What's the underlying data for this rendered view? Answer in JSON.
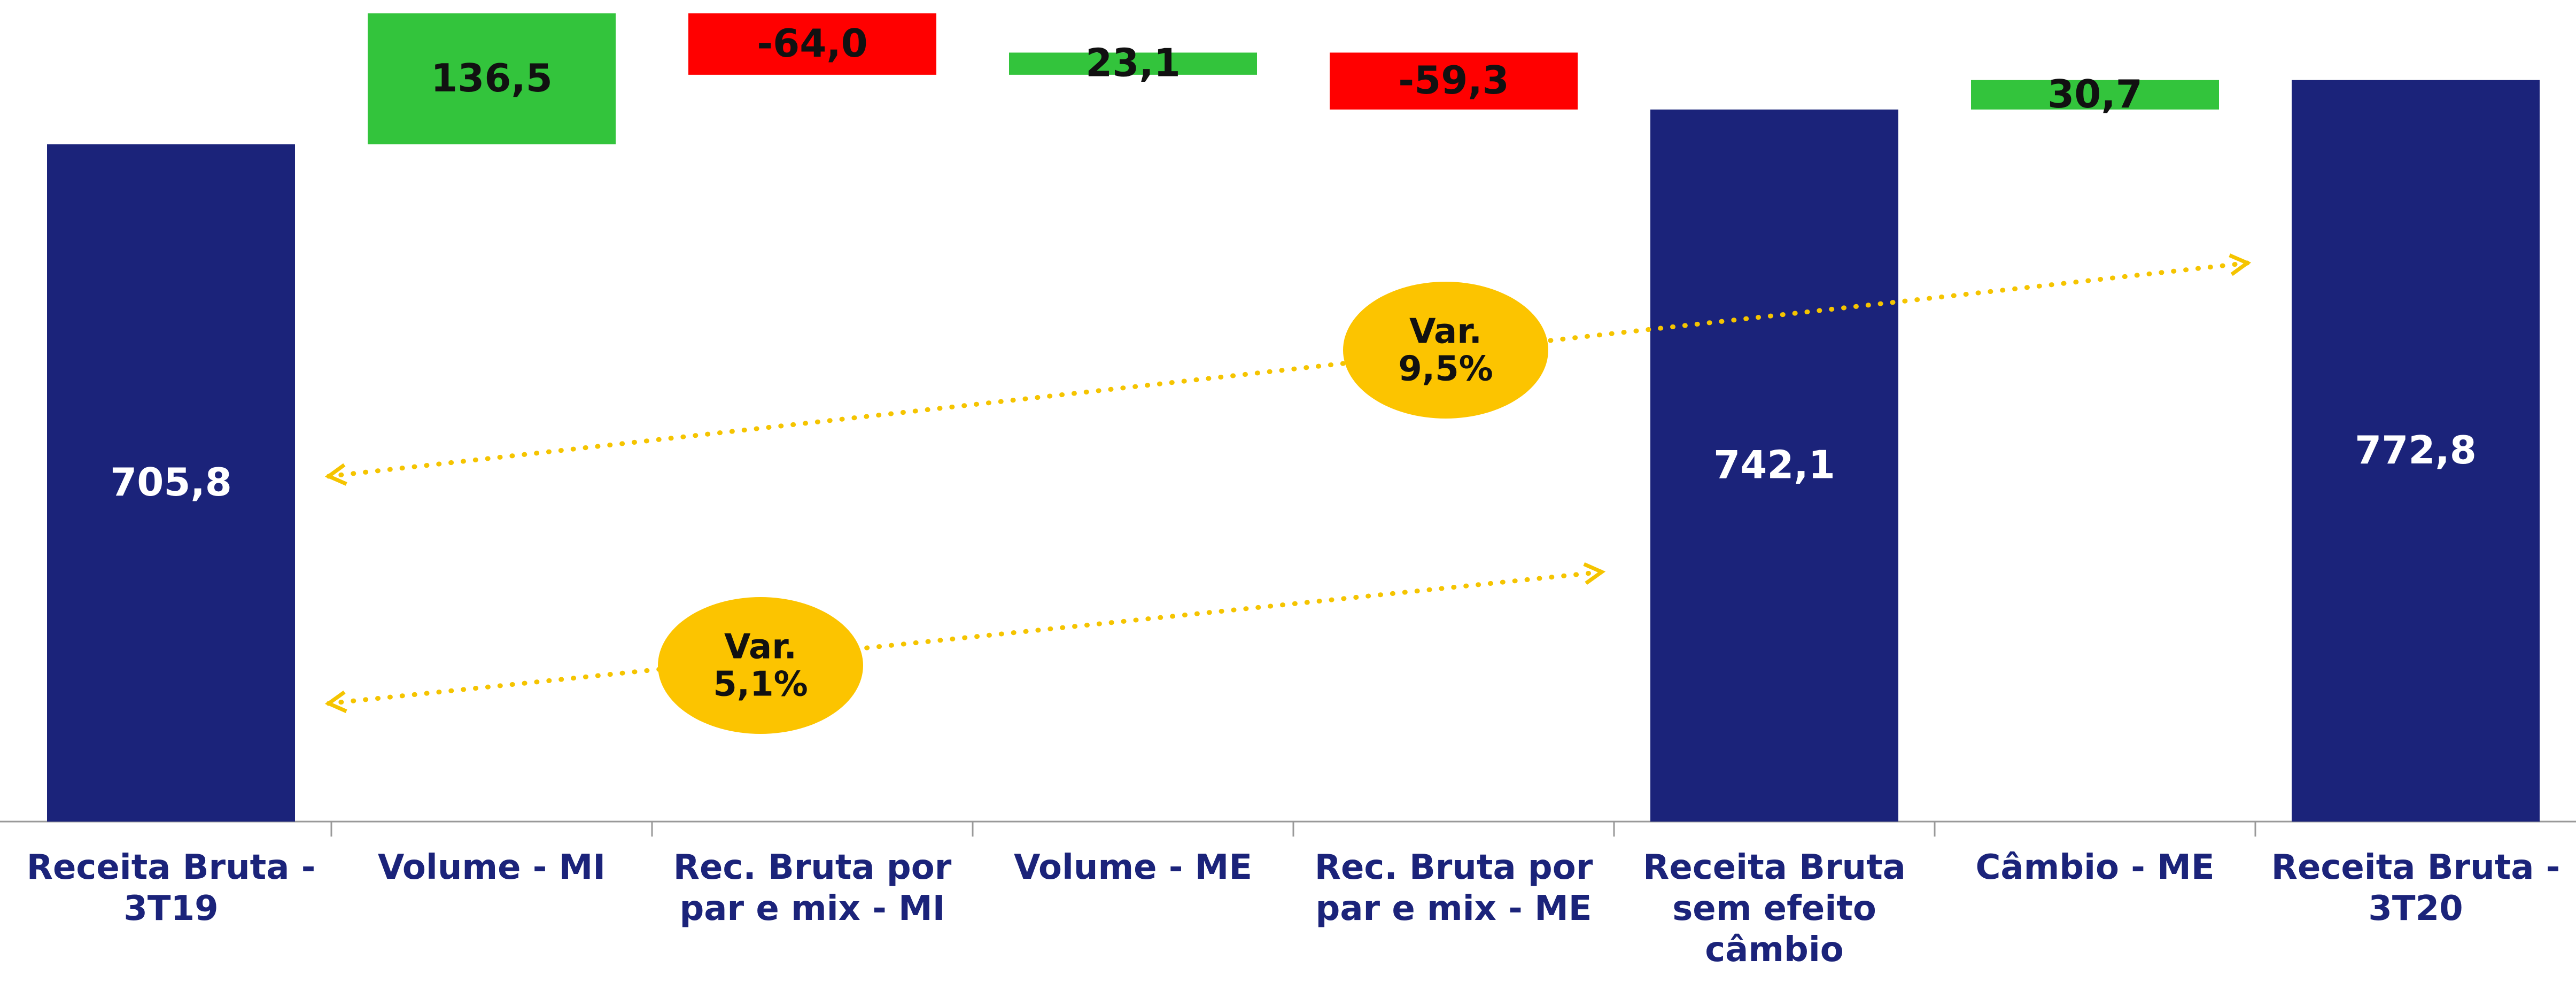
{
  "chart_data": {
    "type": "waterfall",
    "categories": [
      "Receita Bruta -\n3T19",
      "Volume - MI",
      "Rec. Bruta por\npar e mix - MI",
      "Volume - ME",
      "Rec. Bruta por\npar e mix - ME",
      "Receita Bruta\nsem efeito\ncâmbio",
      "Câmbio - ME",
      "Receita Bruta -\n3T20"
    ],
    "values": [
      705.8,
      136.5,
      -64.0,
      23.1,
      -59.3,
      742.1,
      30.7,
      772.8
    ],
    "value_labels": [
      "705,8",
      "136,5",
      "-64,0",
      "23,1",
      "-59,3",
      "742,1",
      "30,7",
      "772,8"
    ],
    "colors": {
      "total": "#1b237a",
      "increase": "#33c43c",
      "decrease": "#ff0000"
    },
    "annotations": [
      {
        "lines": [
          "Var.",
          "9,5%"
        ]
      },
      {
        "lines": [
          "Var.",
          "5,1%"
        ]
      }
    ]
  }
}
